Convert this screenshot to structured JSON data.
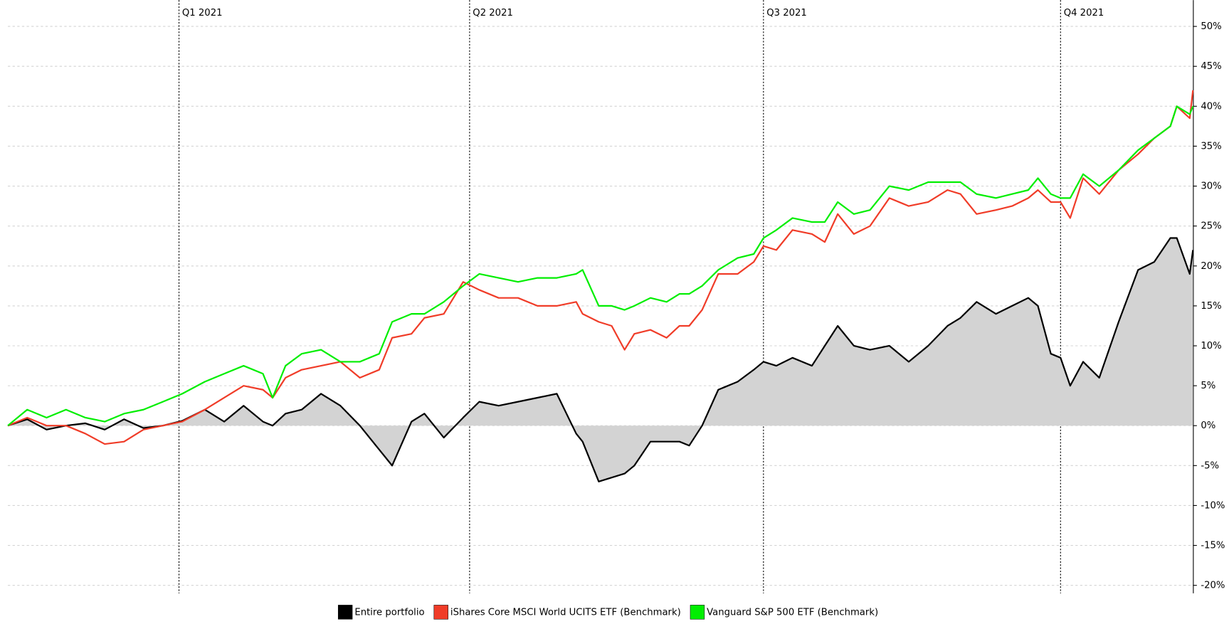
{
  "chart_data": {
    "type": "line",
    "x": [
      -53,
      -47,
      -41,
      -35,
      -29,
      -23,
      -17,
      -11,
      -5,
      1,
      8,
      14,
      20,
      26,
      29,
      33,
      38,
      44,
      50,
      56,
      62,
      66,
      72,
      76,
      82,
      88,
      93,
      99,
      105,
      111,
      117,
      123,
      125,
      130,
      134,
      138,
      141,
      146,
      151,
      155,
      158,
      162,
      167,
      173,
      178,
      181,
      185,
      190,
      196,
      200,
      204,
      209,
      214,
      220,
      226,
      232,
      238,
      242,
      247,
      253,
      258,
      263,
      266,
      270,
      273,
      276,
      280,
      285,
      291,
      297,
      302,
      307,
      309,
      313,
      314
    ],
    "xlim": [
      -53,
      314
    ],
    "xticks": [
      {
        "value": 0,
        "label": "Q1 2021"
      },
      {
        "value": 90,
        "label": "Q2 2021"
      },
      {
        "value": 181,
        "label": "Q3 2021"
      },
      {
        "value": 273,
        "label": "Q4 2021"
      }
    ],
    "ylim": [
      -21,
      53
    ],
    "yticks": [
      {
        "value": -20,
        "label": "-20%"
      },
      {
        "value": -15,
        "label": "-15%"
      },
      {
        "value": -10,
        "label": "-10%"
      },
      {
        "value": -5,
        "label": "-5%"
      },
      {
        "value": 0,
        "label": "0%"
      },
      {
        "value": 5,
        "label": "5%"
      },
      {
        "value": 10,
        "label": "10%"
      },
      {
        "value": 15,
        "label": "15%"
      },
      {
        "value": 20,
        "label": "20%"
      },
      {
        "value": 25,
        "label": "25%"
      },
      {
        "value": 30,
        "label": "30%"
      },
      {
        "value": 35,
        "label": "35%"
      },
      {
        "value": 40,
        "label": "40%"
      },
      {
        "value": 45,
        "label": "45%"
      },
      {
        "value": 50,
        "label": "50%"
      }
    ],
    "grid": true,
    "legend": "bottom",
    "series": [
      {
        "name": "Entire portfolio",
        "color": "#000000",
        "fill": "#d3d3d3",
        "values": [
          0,
          0.8,
          -0.5,
          0,
          0.3,
          -0.5,
          0.8,
          -0.3,
          0,
          0.6,
          2,
          0.5,
          2.5,
          0.5,
          0,
          1.5,
          2,
          4,
          2.5,
          0,
          -3,
          -5,
          0.5,
          1.5,
          -1.5,
          1,
          3,
          2.5,
          3,
          3.5,
          4,
          -1,
          -2,
          -7,
          -6.5,
          -6,
          -5,
          -2,
          -2,
          -2,
          -2.5,
          0,
          4.5,
          5.5,
          7,
          8,
          7.5,
          8.5,
          7.5,
          10,
          12.5,
          10,
          9.5,
          10,
          8,
          10,
          12.5,
          13.5,
          15.5,
          14,
          15,
          16,
          15,
          9,
          8.5,
          5,
          8,
          6,
          13,
          19.5,
          20.5,
          23.5,
          23.5,
          19,
          22
        ]
      },
      {
        "name": "iShares Core MSCI World UCITS ETF (Benchmark)",
        "color": "#f03c28",
        "values": [
          0,
          1,
          0,
          0,
          -1,
          -2.3,
          -2,
          -0.5,
          0,
          0.5,
          2,
          3.5,
          5,
          4.5,
          3.5,
          6,
          7,
          7.5,
          8,
          6,
          7,
          11,
          11.5,
          13.5,
          14,
          18,
          17,
          16,
          16,
          15,
          15,
          15.5,
          14,
          13,
          12.5,
          9.5,
          11.5,
          12,
          11,
          12.5,
          12.5,
          14.5,
          19,
          19,
          20.5,
          22.5,
          22,
          24.5,
          24,
          23,
          26.5,
          24,
          25,
          28.5,
          27.5,
          28,
          29.5,
          29,
          26.5,
          27,
          27.5,
          28.5,
          29.5,
          28,
          28,
          26,
          31,
          29,
          32,
          34,
          36,
          37.5,
          40,
          38.5,
          42
        ]
      },
      {
        "name": "Vanguard S&P 500 ETF (Benchmark)",
        "color": "#00ee00",
        "values": [
          0,
          2,
          1,
          2,
          1,
          0.5,
          1.5,
          2,
          3,
          4,
          5.5,
          6.5,
          7.5,
          6.5,
          3.5,
          7.5,
          9,
          9.5,
          8,
          8,
          9,
          13,
          14,
          14,
          15.5,
          17.5,
          19,
          18.5,
          18,
          18.5,
          18.5,
          19,
          19.5,
          15,
          15,
          14.5,
          15,
          16,
          15.5,
          16.5,
          16.5,
          17.5,
          19.5,
          21,
          21.5,
          23.5,
          24.5,
          26,
          25.5,
          25.5,
          28,
          26.5,
          27,
          30,
          29.5,
          30.5,
          30.5,
          30.5,
          29,
          28.5,
          29,
          29.5,
          31,
          29,
          28.5,
          28.5,
          31.5,
          30,
          32,
          34.5,
          36,
          37.5,
          40,
          39,
          40
        ]
      }
    ]
  }
}
